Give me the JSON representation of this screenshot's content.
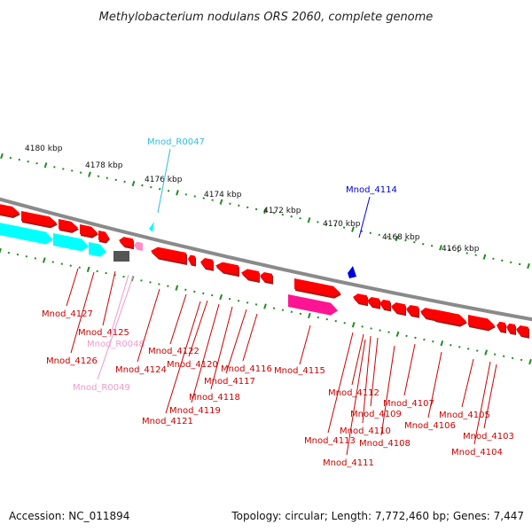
{
  "title": "Methylobacterium nodulans ORS 2060, complete genome",
  "footer": {
    "accession": "Accession: NC_011894",
    "stats": "Topology: circular; Length: 7,772,460 bp; Genes: 7,447"
  },
  "colors": {
    "backbone": "#8a8a8a",
    "tick": "#228b22",
    "gene_red": "#ff0000",
    "gene_red_label": "#cc0000",
    "trna": "#00ffff",
    "trna_label": "#33bbdd",
    "rrna": "#ff8dc6",
    "rrna_label": "#ee99cc",
    "misc_magenta": "#ff1493",
    "pseudo_gray": "#555555",
    "blue_feature": "#0000dd"
  },
  "ticks": [
    {
      "text": "4180 kbp"
    },
    {
      "text": "4178 kbp"
    },
    {
      "text": "4176 kbp"
    },
    {
      "text": "4174 kbp"
    },
    {
      "text": "4172 kbp"
    },
    {
      "text": "4170 kbp"
    },
    {
      "text": "4168 kbp"
    },
    {
      "text": "4166 kbp"
    }
  ],
  "top_labels": [
    {
      "text": "Mnod_R0047",
      "type": "trna"
    },
    {
      "text": "Mnod_4114",
      "type": "blue"
    }
  ],
  "bottom_labels": [
    {
      "text": "Mnod_4127",
      "type": "gene"
    },
    {
      "text": "Mnod_4125",
      "type": "gene"
    },
    {
      "text": "Mnod_R0048",
      "type": "rrna"
    },
    {
      "text": "Mnod_4126",
      "type": "gene"
    },
    {
      "text": "Mnod_4124",
      "type": "gene"
    },
    {
      "text": "Mnod_R0049",
      "type": "rrna"
    },
    {
      "text": "Mnod_4122",
      "type": "gene"
    },
    {
      "text": "Mnod_4120",
      "type": "gene"
    },
    {
      "text": "Mnod_4116",
      "type": "gene"
    },
    {
      "text": "Mnod_4115",
      "type": "gene"
    },
    {
      "text": "Mnod_4117",
      "type": "gene"
    },
    {
      "text": "Mnod_4118",
      "type": "gene"
    },
    {
      "text": "Mnod_4119",
      "type": "gene"
    },
    {
      "text": "Mnod_4121",
      "type": "gene"
    },
    {
      "text": "Mnod_4112",
      "type": "gene"
    },
    {
      "text": "Mnod_4107",
      "type": "gene"
    },
    {
      "text": "Mnod_4109",
      "type": "gene"
    },
    {
      "text": "Mnod_4105",
      "type": "gene"
    },
    {
      "text": "Mnod_4106",
      "type": "gene"
    },
    {
      "text": "Mnod_4110",
      "type": "gene"
    },
    {
      "text": "Mnod_4103",
      "type": "gene"
    },
    {
      "text": "Mnod_4113",
      "type": "gene"
    },
    {
      "text": "Mnod_4108",
      "type": "gene"
    },
    {
      "text": "Mnod_4104",
      "type": "gene"
    },
    {
      "text": "Mnod_4111",
      "type": "gene"
    }
  ]
}
